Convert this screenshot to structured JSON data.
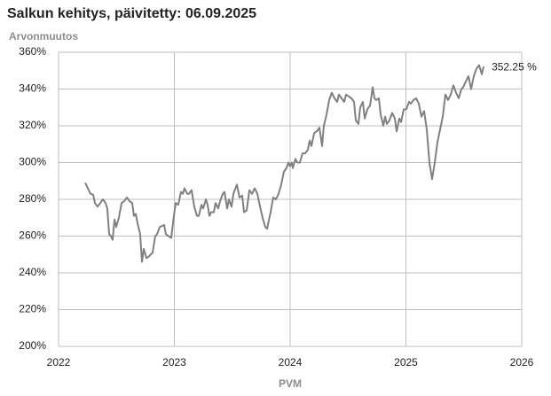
{
  "chart_data": {
    "type": "line",
    "title": "Salkun kehitys, päivitetty: 06.09.2025",
    "y_label": "Arvonmuutos",
    "x_label": "PVM",
    "annotation": "352.25 %",
    "color": "#808080",
    "grid": true,
    "xlim": [
      2022,
      2026
    ],
    "xticks": [
      2022,
      2023,
      2024,
      2025,
      2026
    ],
    "ylim": [
      200,
      360
    ],
    "yticks": [
      {
        "value": 200,
        "label": "200%"
      },
      {
        "value": 220,
        "label": "220%"
      },
      {
        "value": 240,
        "label": "240%"
      },
      {
        "value": 260,
        "label": "260%"
      },
      {
        "value": 280,
        "label": "280%"
      },
      {
        "value": 300,
        "label": "300%"
      },
      {
        "value": 320,
        "label": "320%"
      },
      {
        "value": 340,
        "label": "340%"
      },
      {
        "value": 360,
        "label": "360%"
      }
    ],
    "x": [
      2022.23,
      2022.253,
      2022.276,
      2022.299,
      2022.314,
      2022.337,
      2022.36,
      2022.383,
      2022.406,
      2022.421,
      2022.437,
      2022.452,
      2022.467,
      2022.483,
      2022.498,
      2022.521,
      2022.544,
      2022.567,
      2022.59,
      2022.613,
      2022.636,
      2022.651,
      2022.667,
      2022.682,
      2022.705,
      2022.72,
      2022.736,
      2022.759,
      2022.782,
      2022.812,
      2022.835,
      2022.851,
      2022.874,
      2022.912,
      2022.927,
      2022.95,
      2022.973,
      2022.996,
      2023.012,
      2023.034,
      2023.057,
      2023.073,
      2023.088,
      2023.111,
      2023.126,
      2023.149,
      2023.172,
      2023.195,
      2023.211,
      2023.234,
      2023.249,
      2023.272,
      2023.287,
      2023.303,
      2023.318,
      2023.341,
      2023.356,
      2023.379,
      2023.395,
      2023.418,
      2023.433,
      2023.456,
      2023.471,
      2023.494,
      2023.51,
      2023.54,
      2023.563,
      2023.586,
      2023.602,
      2023.625,
      2023.648,
      2023.671,
      2023.694,
      2023.717,
      2023.74,
      2023.762,
      2023.785,
      2023.801,
      2023.831,
      2023.854,
      2023.877,
      2023.9,
      2023.923,
      2023.946,
      2023.969,
      2023.985,
      2024.0,
      2024.015,
      2024.023,
      2024.046,
      2024.061,
      2024.084,
      2024.107,
      2024.13,
      2024.153,
      2024.169,
      2024.184,
      2024.207,
      2024.23,
      2024.253,
      2024.276,
      2024.291,
      2024.314,
      2024.337,
      2024.36,
      2024.383,
      2024.406,
      2024.421,
      2024.444,
      2024.467,
      2024.483,
      2024.506,
      2024.529,
      2024.552,
      2024.567,
      2024.59,
      2024.605,
      2024.628,
      2024.644,
      2024.667,
      2024.69,
      2024.713,
      2024.728,
      2024.743,
      2024.766,
      2024.782,
      2024.805,
      2024.82,
      2024.835,
      2024.858,
      2024.881,
      2024.904,
      2024.92,
      2024.943,
      2024.958,
      2024.981,
      2025.004,
      2025.027,
      2025.042,
      2025.065,
      2025.088,
      2025.111,
      2025.134,
      2025.157,
      2025.18,
      2025.203,
      2025.226,
      2025.249,
      2025.272,
      2025.295,
      2025.318,
      2025.341,
      2025.364,
      2025.387,
      2025.41,
      2025.433,
      2025.456,
      2025.479,
      2025.494,
      2025.517,
      2025.54,
      2025.563,
      2025.586,
      2025.609,
      2025.632,
      2025.655,
      2025.671
    ],
    "values": [
      289,
      286,
      283,
      282.5,
      278,
      276,
      278,
      280,
      278,
      275,
      261,
      260,
      258,
      269,
      265,
      270,
      278,
      279,
      281,
      279,
      278,
      271,
      272,
      267,
      261,
      246,
      253,
      248,
      249,
      251,
      260,
      261,
      265,
      266,
      261,
      260,
      259,
      271,
      278,
      277,
      284,
      283,
      286,
      283,
      283,
      285,
      276,
      271,
      271,
      277,
      275,
      280,
      277,
      271,
      273,
      273,
      278,
      275,
      279,
      283,
      284,
      275,
      280,
      276,
      283,
      288,
      281,
      282,
      273,
      274,
      285,
      283,
      286,
      283,
      276,
      270,
      265,
      264,
      273,
      281,
      280,
      283,
      288,
      295,
      297,
      300,
      298,
      300,
      297,
      302,
      300,
      300,
      305,
      305,
      307,
      312,
      309,
      316,
      317,
      319,
      309,
      320,
      326,
      334,
      338,
      335,
      333,
      337,
      335,
      333,
      337,
      336,
      335,
      333,
      323,
      321,
      330,
      333,
      324,
      329,
      331,
      341,
      335,
      334,
      335,
      326,
      320,
      325,
      321,
      323,
      327,
      324,
      317,
      324,
      322,
      329,
      329,
      333,
      332,
      334,
      335,
      332,
      325,
      328,
      318,
      300,
      291,
      300,
      311,
      318,
      325,
      337,
      334,
      337,
      342,
      338,
      335,
      340,
      341,
      344,
      347,
      340,
      347,
      351,
      353,
      348,
      352.25
    ]
  }
}
